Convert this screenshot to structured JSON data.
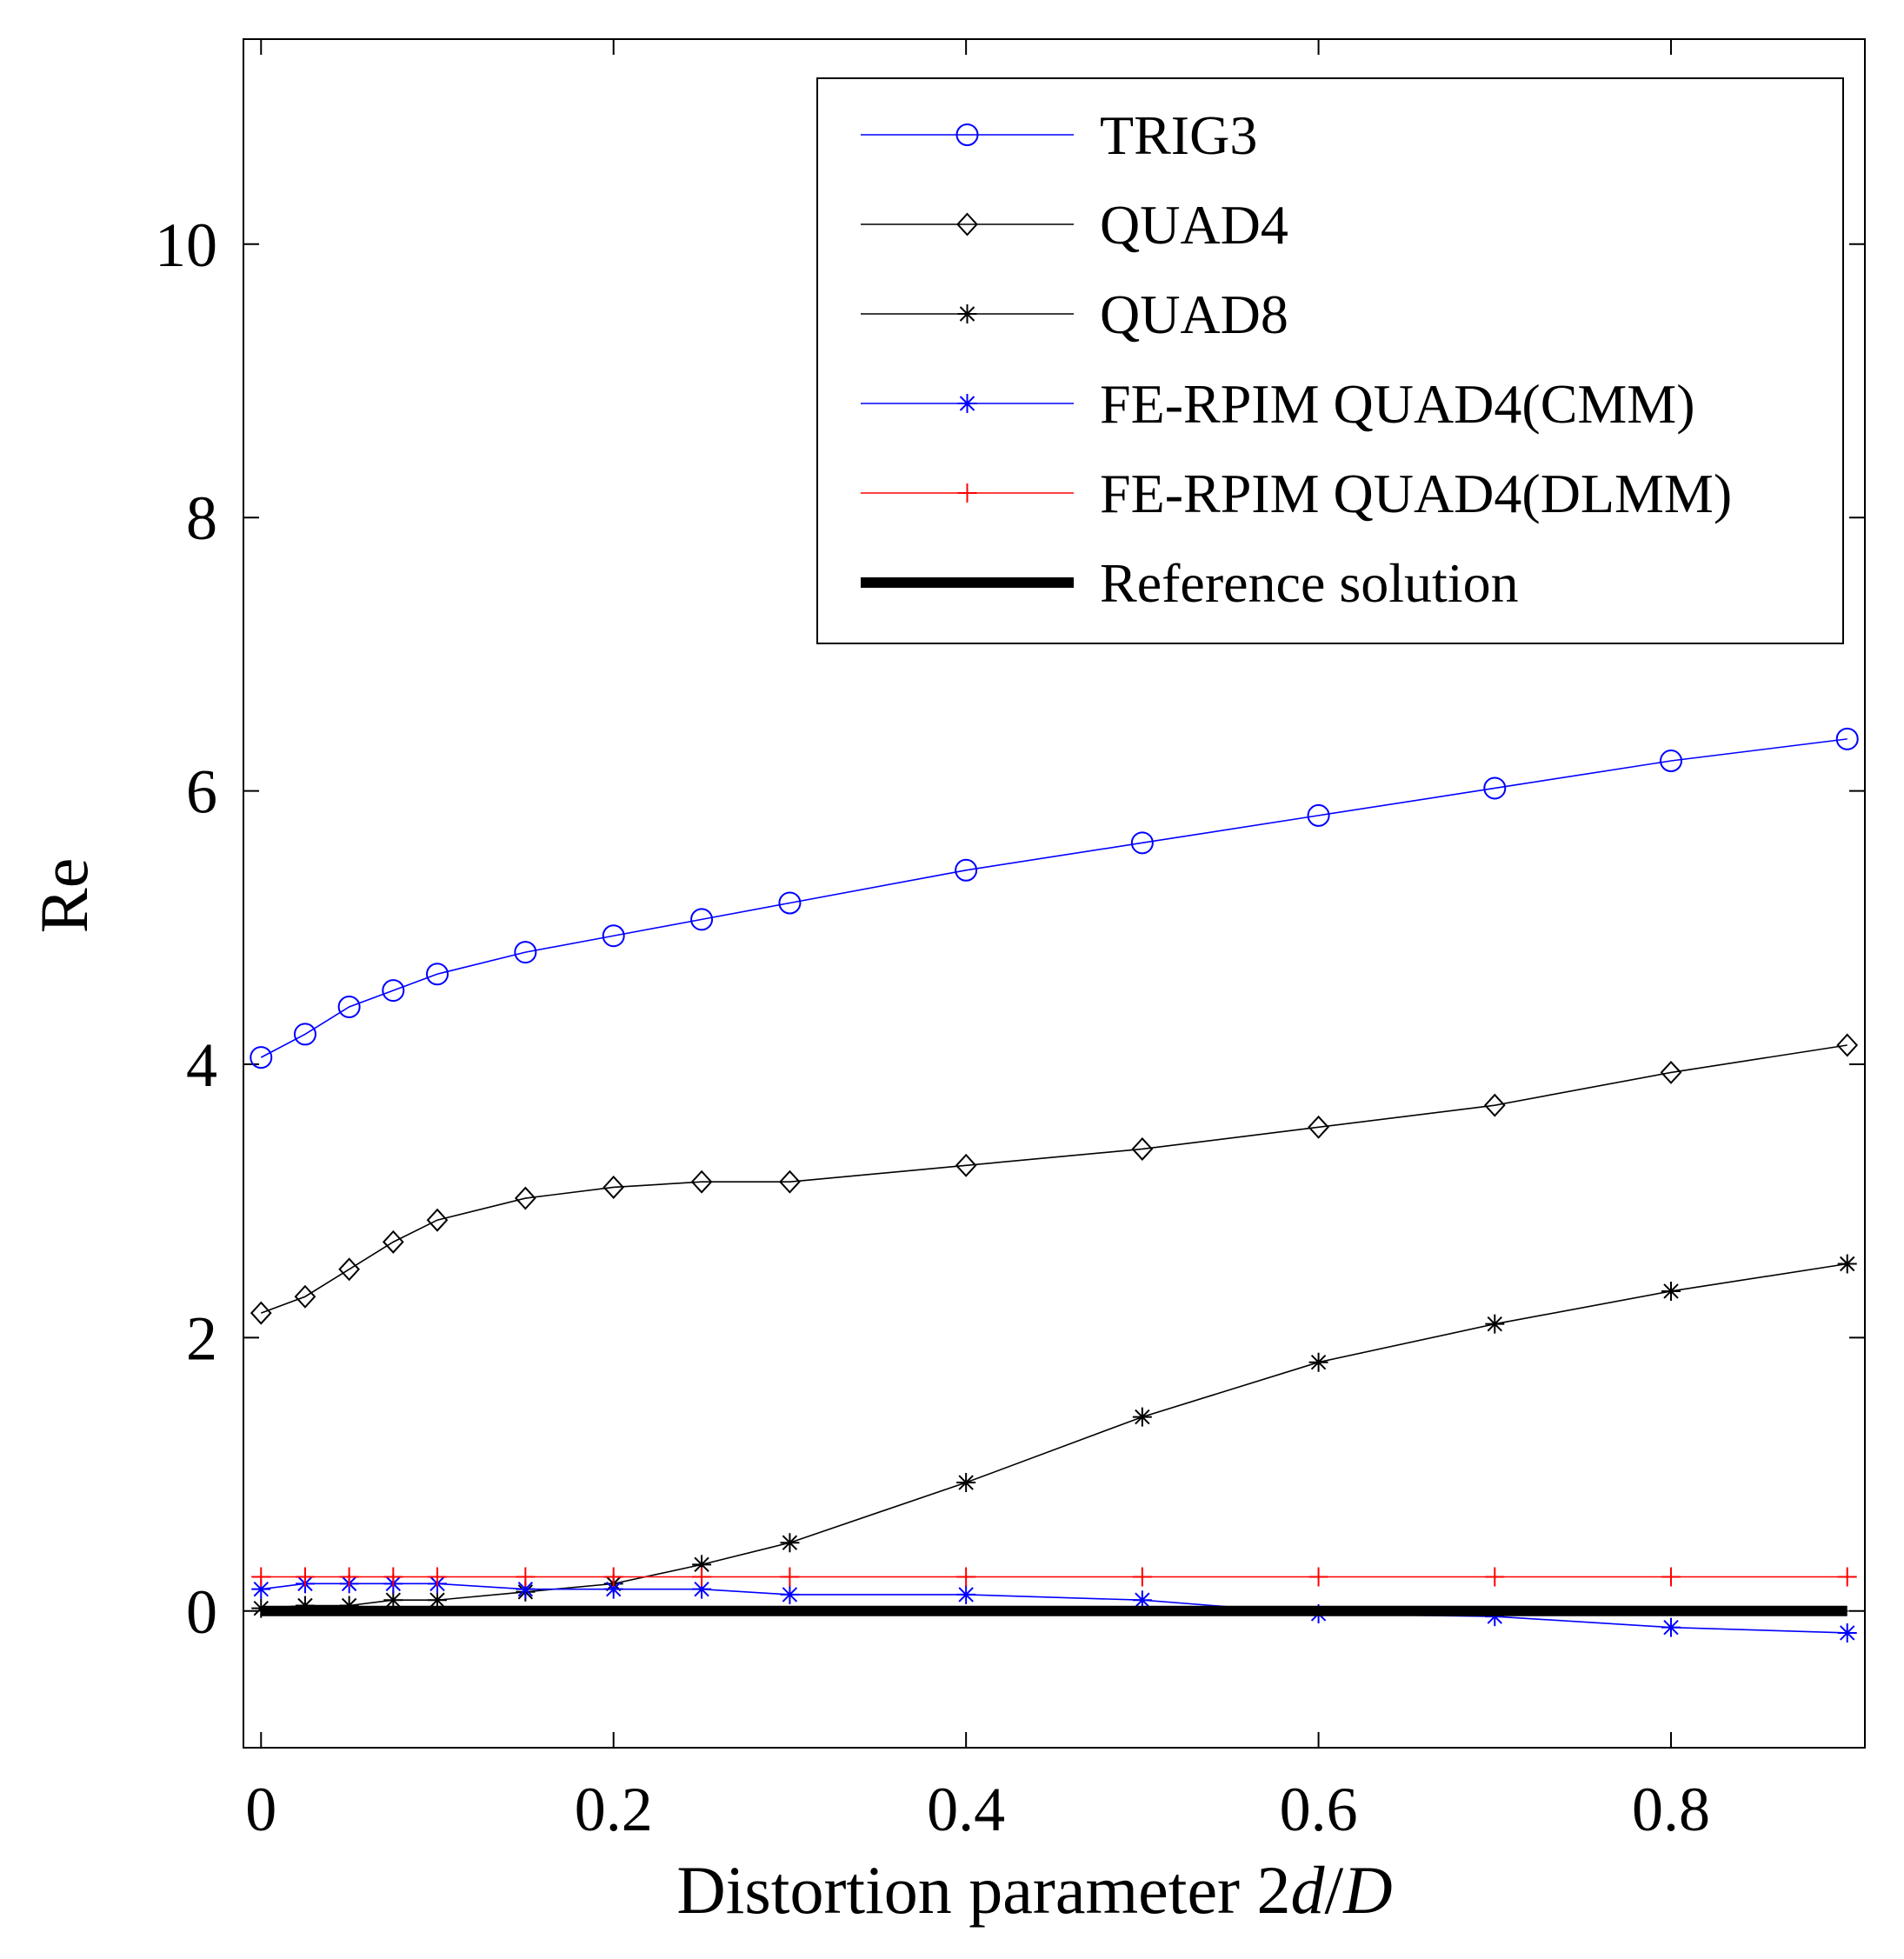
{
  "chart_data": {
    "type": "line",
    "title": "",
    "xlabel": {
      "prefix": "Distortion parameter 2",
      "var1": "d",
      "slash": "/",
      "var2": "D"
    },
    "ylabel": "Re",
    "xlim": [
      -0.01,
      0.91
    ],
    "ylim": [
      -1.0,
      11.5
    ],
    "xticks": [
      0,
      0.2,
      0.4,
      0.6,
      0.8
    ],
    "xtick_labels": [
      "0",
      "0.2",
      "0.4",
      "0.6",
      "0.8"
    ],
    "yticks": [
      0,
      2,
      4,
      6,
      8,
      10
    ],
    "ytick_labels": [
      "0",
      "2",
      "4",
      "6",
      "8",
      "10"
    ],
    "grid": false,
    "legend_position": "top-right",
    "series": [
      {
        "name": "TRIG3",
        "color": "#0000ff",
        "marker": "circle",
        "x": [
          0,
          0.025,
          0.05,
          0.075,
          0.1,
          0.15,
          0.2,
          0.25,
          0.3,
          0.4,
          0.5,
          0.6,
          0.7,
          0.8,
          0.9
        ],
        "y": [
          4.05,
          4.22,
          4.42,
          4.54,
          4.66,
          4.82,
          4.94,
          5.06,
          5.18,
          5.42,
          5.62,
          5.82,
          6.02,
          6.22,
          6.38
        ]
      },
      {
        "name": "QUAD4",
        "color": "#000000",
        "marker": "diamond",
        "x": [
          0,
          0.025,
          0.05,
          0.075,
          0.1,
          0.15,
          0.2,
          0.25,
          0.3,
          0.4,
          0.5,
          0.6,
          0.7,
          0.8,
          0.9
        ],
        "y": [
          2.18,
          2.3,
          2.5,
          2.7,
          2.86,
          3.02,
          3.1,
          3.14,
          3.14,
          3.26,
          3.38,
          3.54,
          3.7,
          3.94,
          4.14
        ]
      },
      {
        "name": "QUAD8",
        "color": "#000000",
        "marker": "star",
        "x": [
          0,
          0.025,
          0.05,
          0.075,
          0.1,
          0.15,
          0.2,
          0.25,
          0.3,
          0.4,
          0.5,
          0.6,
          0.7,
          0.8,
          0.9
        ],
        "y": [
          0.02,
          0.04,
          0.04,
          0.08,
          0.08,
          0.14,
          0.2,
          0.34,
          0.5,
          0.94,
          1.42,
          1.82,
          2.1,
          2.34,
          2.54
        ]
      },
      {
        "name": "FE-RPIM QUAD4(CMM)",
        "color": "#0000ff",
        "marker": "asterisk",
        "x": [
          0,
          0.025,
          0.05,
          0.075,
          0.1,
          0.15,
          0.2,
          0.25,
          0.3,
          0.4,
          0.5,
          0.6,
          0.7,
          0.8,
          0.9
        ],
        "y": [
          0.16,
          0.2,
          0.2,
          0.2,
          0.2,
          0.16,
          0.16,
          0.16,
          0.12,
          0.12,
          0.08,
          -0.02,
          -0.04,
          -0.12,
          -0.16
        ]
      },
      {
        "name": "FE-RPIM QUAD4(DLMM)",
        "color": "#ff0000",
        "marker": "plus",
        "x": [
          0,
          0.025,
          0.05,
          0.075,
          0.1,
          0.15,
          0.2,
          0.25,
          0.3,
          0.4,
          0.5,
          0.6,
          0.7,
          0.8,
          0.9
        ],
        "y": [
          0.25,
          0.25,
          0.25,
          0.25,
          0.25,
          0.25,
          0.25,
          0.25,
          0.25,
          0.25,
          0.25,
          0.25,
          0.25,
          0.25,
          0.25
        ]
      },
      {
        "name": "Reference solution",
        "color": "#000000",
        "marker": "none",
        "thick": true,
        "x": [
          0,
          0.9
        ],
        "y": [
          0,
          0
        ]
      }
    ]
  }
}
